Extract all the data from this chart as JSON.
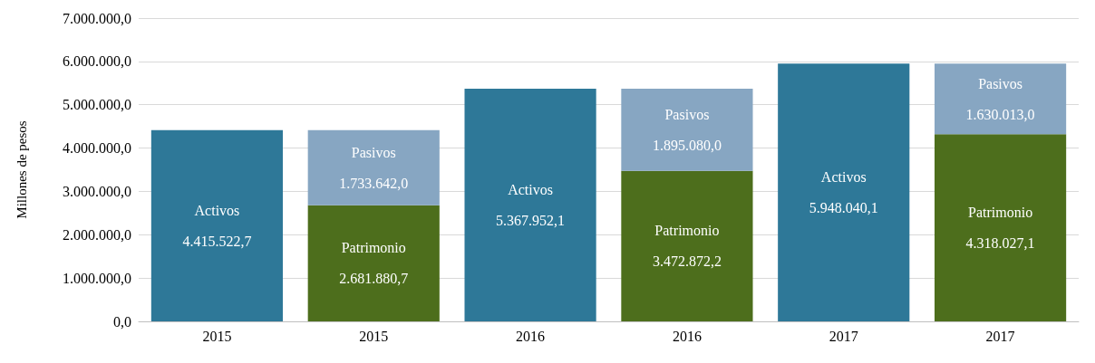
{
  "chart_data": {
    "type": "bar",
    "stacked": true,
    "ylabel": "Millones de pesos",
    "categories": [
      "2015",
      "2015",
      "2016",
      "2016",
      "2017",
      "2017"
    ],
    "series": [
      {
        "name": "Activos",
        "color": "#2e7898",
        "values": [
          4415522.7,
          null,
          5367952.1,
          null,
          5948040.1,
          null
        ],
        "value_labels": [
          "4.415.522,7",
          null,
          "5.367.952,1",
          null,
          "5.948.040,1",
          null
        ]
      },
      {
        "name": "Patrimonio",
        "color": "#4d6e1c",
        "values": [
          null,
          2681880.7,
          null,
          3472872.2,
          null,
          4318027.1
        ],
        "value_labels": [
          null,
          "2.681.880,7",
          null,
          "3.472.872,2",
          null,
          "4.318.027,1"
        ]
      },
      {
        "name": "Pasivos",
        "color": "#87a6c2",
        "values": [
          null,
          1733642.0,
          null,
          1895080.0,
          null,
          1630013.0
        ],
        "value_labels": [
          null,
          "1.733.642,0",
          null,
          "1.895.080,0",
          null,
          "1.630.013,0"
        ]
      }
    ],
    "ylim": [
      0,
      7000000
    ],
    "yticks": [
      {
        "value": 0,
        "label": "0,0"
      },
      {
        "value": 1000000,
        "label": "1.000.000,0"
      },
      {
        "value": 2000000,
        "label": "2.000.000,0"
      },
      {
        "value": 3000000,
        "label": "3.000.000,0"
      },
      {
        "value": 4000000,
        "label": "4.000.000,0"
      },
      {
        "value": 5000000,
        "label": "5.000.000,0"
      },
      {
        "value": 6000000,
        "label": "6.000.000,0"
      },
      {
        "value": 7000000,
        "label": "7.000.000,0"
      }
    ],
    "grid": "y",
    "legend": false
  }
}
